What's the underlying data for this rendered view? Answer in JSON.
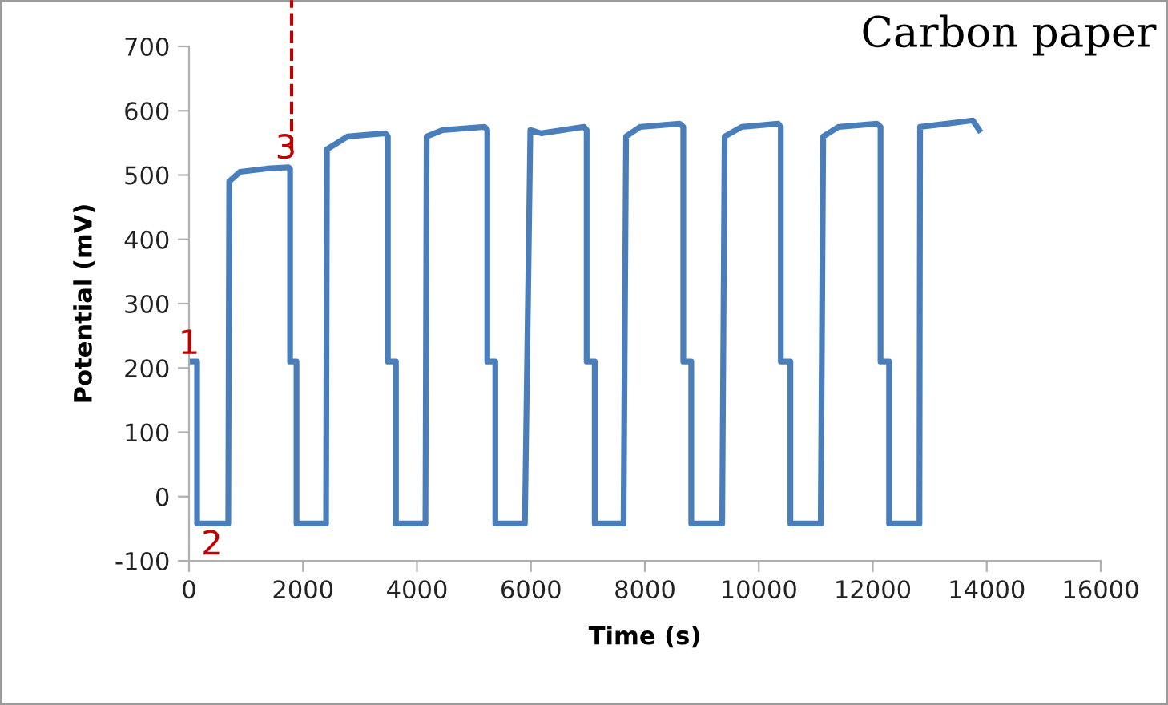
{
  "chart_data": {
    "type": "line",
    "title": "Carbon paper",
    "xlabel": "Time (s)",
    "ylabel": "Potential (mV)",
    "x": [
      0,
      141,
      141,
      688,
      705,
      896,
      1367,
      1745,
      1773,
      1773,
      1886,
      1886,
      2405,
      2420,
      2782,
      3442,
      3489,
      3489,
      3631,
      3631,
      4149,
      4170,
      4450,
      5187,
      5234,
      5234,
      5375,
      5375,
      5894,
      5990,
      6180,
      6931,
      6978,
      6978,
      7120,
      7120,
      7626,
      7670,
      7920,
      8608,
      8674,
      8674,
      8814,
      8814,
      9357,
      9400,
      9700,
      10339,
      10386,
      10386,
      10554,
      10554,
      11088,
      11088,
      11130,
      11400,
      12070,
      12136,
      12136,
      12286,
      12286,
      12819,
      12819,
      12830,
      13300,
      13755,
      13867
    ],
    "series": [
      {
        "color": "#4a7ebb",
        "values": [
          210,
          210,
          -42,
          -42,
          490,
          505,
          510,
          512,
          510,
          210,
          210,
          -42,
          -42,
          540,
          560,
          565,
          560,
          210,
          210,
          -42,
          -42,
          560,
          570,
          575,
          570,
          210,
          210,
          -42,
          -42,
          570,
          565,
          575,
          570,
          210,
          210,
          -42,
          -42,
          560,
          575,
          580,
          575,
          210,
          210,
          -42,
          -42,
          560,
          575,
          580,
          575,
          210,
          210,
          -42,
          -42,
          -21,
          560,
          575,
          580,
          575,
          210,
          210,
          -42,
          -42,
          -20,
          575,
          580,
          585,
          570
        ]
      }
    ],
    "xlim": [
      0,
      16000
    ],
    "xticks": [
      0,
      2000,
      4000,
      6000,
      8000,
      10000,
      12000,
      14000,
      16000
    ],
    "ylim": [
      -100,
      700
    ],
    "yticks": [
      -100,
      0,
      100,
      200,
      300,
      400,
      500,
      600,
      700
    ],
    "grid": false,
    "legend": false,
    "marker": "none",
    "line_style": "solid",
    "ref_lines": [
      {
        "axis": "x",
        "value": 1800,
        "color": "#c00000",
        "line_style": "dashed"
      }
    ],
    "annotations": [
      "1",
      "2",
      {
        "text": "3",
        "x": 1700,
        "y": 540
      }
    ]
  }
}
